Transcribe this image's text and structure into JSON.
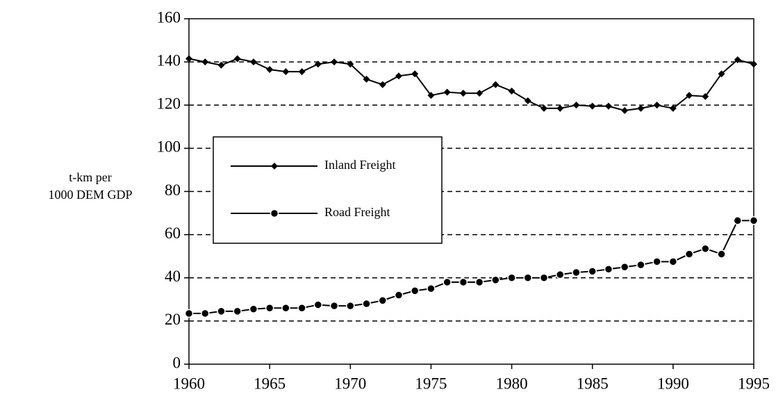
{
  "chart_data": {
    "type": "line",
    "ylabel": [
      "t-km per",
      "1000 DEM GDP"
    ],
    "x": [
      1960,
      1961,
      1962,
      1963,
      1964,
      1965,
      1966,
      1967,
      1968,
      1969,
      1970,
      1971,
      1972,
      1973,
      1974,
      1975,
      1976,
      1977,
      1978,
      1979,
      1980,
      1981,
      1982,
      1983,
      1984,
      1985,
      1986,
      1987,
      1988,
      1989,
      1990,
      1991,
      1992,
      1993,
      1994,
      1995
    ],
    "series": [
      {
        "name": "Inland Freight",
        "color": "#000000",
        "marker": "diamond",
        "values": [
          141.5,
          140,
          138.5,
          141.5,
          140,
          136.5,
          135.5,
          135.5,
          139,
          140,
          139,
          132,
          129.5,
          133.5,
          134.5,
          124.5,
          126,
          125.5,
          125.5,
          129.5,
          126.5,
          122,
          118.5,
          118.5,
          120,
          119.5,
          119.5,
          117.5,
          118.5,
          120,
          118.5,
          124.5,
          124,
          134.5,
          141,
          139
        ]
      },
      {
        "name": "Road Freight",
        "color": "#000000",
        "marker": "circle",
        "values": [
          23.5,
          23.5,
          24.5,
          24.5,
          25.5,
          26,
          26,
          26,
          27.5,
          27,
          27,
          28,
          29.5,
          32,
          34,
          35,
          38,
          38,
          38,
          39,
          40,
          40,
          40,
          41.5,
          42.5,
          43,
          44,
          45,
          46,
          47.5,
          47.5,
          51,
          53.5,
          51,
          66.5,
          66.5
        ]
      }
    ],
    "xlim": [
      1960,
      1995
    ],
    "xticks": [
      1960,
      1965,
      1970,
      1975,
      1980,
      1985,
      1990,
      1995
    ],
    "ylim": [
      0,
      160
    ],
    "yticks": [
      0,
      20,
      40,
      60,
      80,
      100,
      120,
      140,
      160
    ],
    "grid": true,
    "legend": "center left"
  }
}
